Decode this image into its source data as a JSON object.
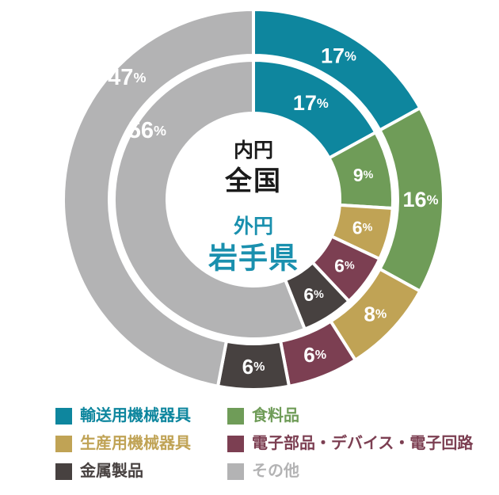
{
  "chart_data": {
    "type": "pie",
    "variant": "nested-donut",
    "title": "",
    "unit": "%",
    "start_angle_deg_from_top": 0,
    "direction": "clockwise",
    "legend_position": "bottom",
    "background_color": "#ffffff",
    "categories": [
      {
        "label": "輸送用機械器具",
        "color": "#0e869e"
      },
      {
        "label": "食料品",
        "color": "#6f9c58"
      },
      {
        "label": "生産用機械器具",
        "color": "#c0a355"
      },
      {
        "label": "電子部品・デバイス・電子回路",
        "color": "#7c3f52"
      },
      {
        "label": "金属製品",
        "color": "#474140"
      },
      {
        "label": "その他",
        "color": "#b3b3b4"
      }
    ],
    "rings": [
      {
        "name": "全国",
        "position": "inner",
        "values": [
          17,
          9,
          6,
          6,
          6,
          56
        ],
        "labels": [
          "17%",
          "9%",
          "6%",
          "6%",
          "6%",
          "56%"
        ],
        "label_overrides": {
          "5": {
            "angle": 303,
            "radius": 160,
            "size": 29
          }
        }
      },
      {
        "name": "岩手県",
        "position": "outer",
        "values": [
          17,
          16,
          8,
          6,
          6,
          47
        ],
        "labels": [
          "17%",
          "16%",
          "8%",
          "6%",
          "6%",
          "47%"
        ],
        "label_overrides": {
          "5": {
            "angle": 314,
            "radius": 222,
            "size": 29
          }
        }
      }
    ],
    "center_labels": {
      "inner_caption": "内円",
      "inner_name": "全国",
      "outer_caption": "外円",
      "outer_name": "岩手県",
      "inner_text_color": "#1a1a1a",
      "outer_text_color": "#1a90ae"
    }
  }
}
